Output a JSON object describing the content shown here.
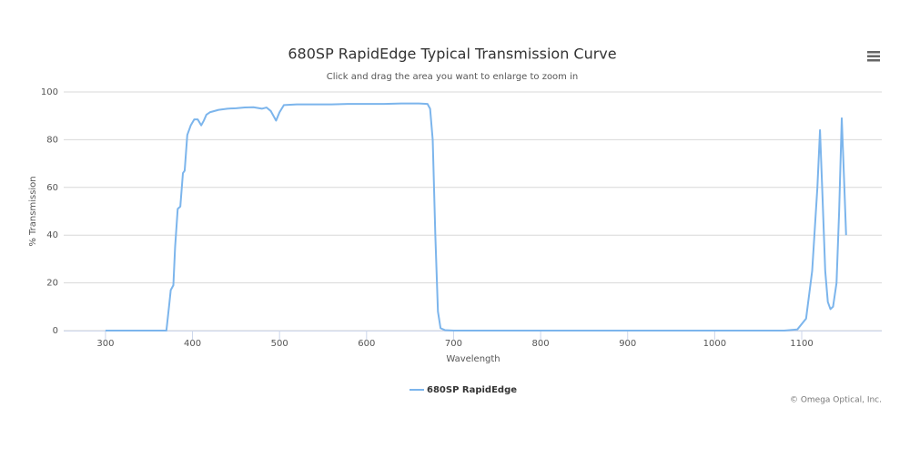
{
  "chart_data": {
    "type": "line",
    "title": "680SP RapidEdge Typical Transmission Curve",
    "subtitle": "Click and drag the area you want to enlarge to zoom in",
    "x_label": "Wavelength",
    "y_label": "% Transmission",
    "credits": "© Omega Optical, Inc.",
    "x": [
      300,
      370,
      373,
      375,
      378,
      380,
      383,
      386,
      389,
      391,
      394,
      398,
      402,
      406,
      410,
      413,
      416,
      420,
      430,
      440,
      450,
      460,
      470,
      480,
      485,
      490,
      496,
      500,
      505,
      520,
      540,
      560,
      580,
      600,
      620,
      640,
      660,
      670,
      673,
      676,
      679,
      682,
      685,
      690,
      700,
      800,
      900,
      1000,
      1080,
      1095,
      1105,
      1112,
      1118,
      1121,
      1124,
      1127,
      1130,
      1133,
      1136,
      1140,
      1143,
      1146,
      1149,
      1151
    ],
    "series": [
      {
        "name": "680SP RapidEdge",
        "color": "#7cb5ec",
        "values": [
          0,
          0,
          10,
          17,
          19,
          35,
          51,
          52,
          66,
          67,
          82,
          86,
          88.5,
          88.5,
          86,
          88,
          90.5,
          91.5,
          92.5,
          93,
          93.2,
          93.5,
          93.6,
          93,
          93.5,
          92,
          88,
          91.5,
          94.5,
          94.8,
          94.8,
          94.8,
          95,
          95,
          95,
          95.2,
          95.2,
          95,
          93,
          80,
          40,
          8,
          1,
          0.2,
          0,
          0,
          0,
          0,
          0,
          0.5,
          5,
          25,
          60,
          84,
          55,
          25,
          12,
          9,
          10,
          20,
          50,
          89,
          60,
          40
        ]
      }
    ],
    "xlim": [
      252,
      1192
    ],
    "ylim": [
      0,
      100
    ],
    "xticks": [
      300,
      400,
      500,
      600,
      700,
      800,
      900,
      1000,
      1100
    ],
    "yticks": [
      0,
      20,
      40,
      60,
      80,
      100
    ],
    "grid": true
  }
}
